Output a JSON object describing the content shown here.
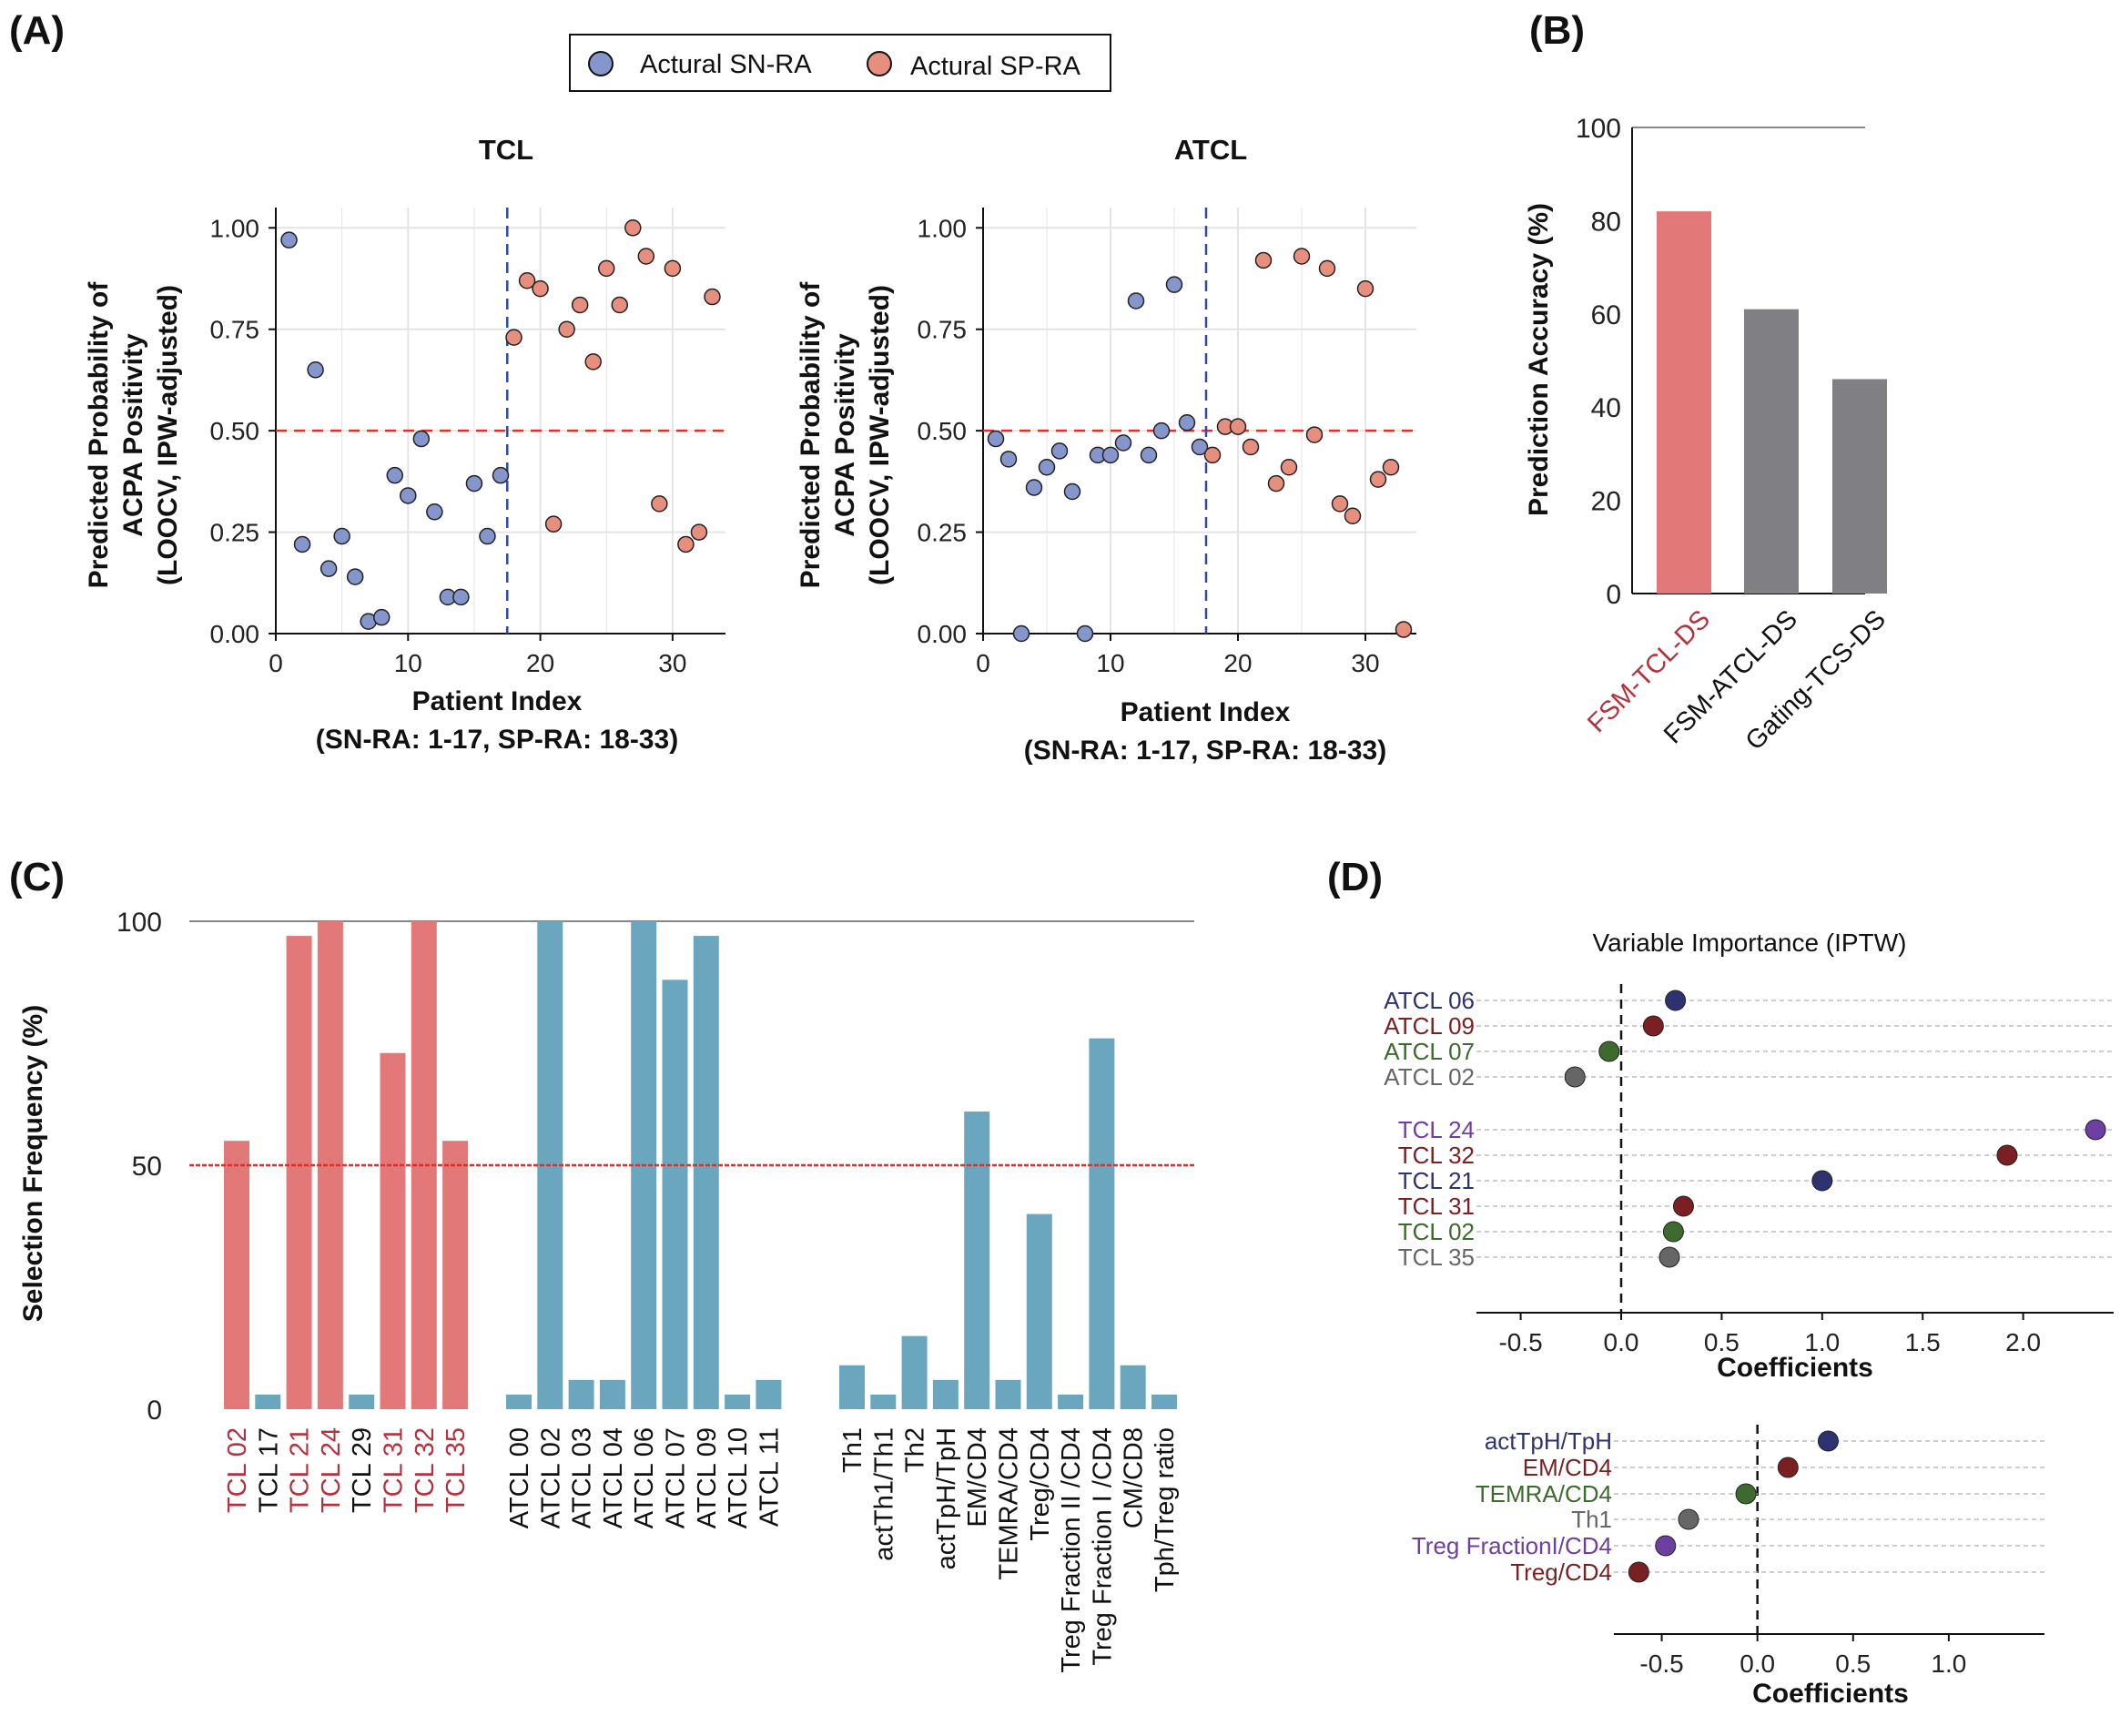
{
  "panels": {
    "A": "(A)",
    "B": "(B)",
    "C": "(C)",
    "D": "(D)"
  },
  "legend": {
    "items": [
      {
        "label": "Actural SN-RA",
        "color": "#8496cc"
      },
      {
        "label": "Actural SP-RA",
        "color": "#e68f7f"
      }
    ]
  },
  "chart_data": [
    {
      "id": "tcl",
      "type": "scatter",
      "title": "TCL",
      "ylabel_lines": [
        "Predicted Probability of",
        "ACPA Positivity",
        "(LOOCV, IPW-adjusted)"
      ],
      "xlabel_lines": [
        "Patient Index",
        "(SN-RA: 1-17, SP-RA: 18-33)"
      ],
      "xlim": [
        0,
        34
      ],
      "ylim": [
        0,
        1.05
      ],
      "xticks": [
        0,
        10,
        20,
        30
      ],
      "yticks": [
        0.0,
        0.25,
        0.5,
        0.75,
        1.0
      ],
      "ytick_labels": [
        "0.00",
        "0.25",
        "0.50",
        "0.75",
        "1.00"
      ],
      "threshold": 0.5,
      "split": 17.5,
      "series": [
        {
          "name": "Actural SN-RA",
          "color": "#8496cc",
          "x": [
            1,
            2,
            3,
            4,
            5,
            6,
            7,
            8,
            9,
            10,
            11,
            12,
            13,
            14,
            15,
            16,
            17
          ],
          "y": [
            0.97,
            0.22,
            0.65,
            0.16,
            0.24,
            0.14,
            0.03,
            0.04,
            0.39,
            0.34,
            0.48,
            0.3,
            0.09,
            0.09,
            0.37,
            0.24,
            0.39
          ]
        },
        {
          "name": "Actural SP-RA",
          "color": "#e68f7f",
          "x": [
            18,
            19,
            20,
            21,
            22,
            23,
            24,
            25,
            26,
            27,
            28,
            30,
            29,
            31,
            32,
            33
          ],
          "y": [
            0.73,
            0.87,
            0.85,
            0.27,
            0.75,
            0.81,
            0.67,
            0.9,
            0.81,
            1.0,
            0.93,
            0.9,
            0.32,
            0.22,
            0.25,
            0.83
          ]
        }
      ]
    },
    {
      "id": "atcl",
      "type": "scatter",
      "title": "ATCL",
      "ylabel_lines": [
        "Predicted Probability of",
        "ACPA Positivity",
        "(LOOCV, IPW-adjusted)"
      ],
      "xlabel_lines": [
        "Patient Index",
        "(SN-RA: 1-17, SP-RA: 18-33)"
      ],
      "xlim": [
        0,
        34
      ],
      "ylim": [
        0,
        1.05
      ],
      "xticks": [
        0,
        10,
        20,
        30
      ],
      "yticks": [
        0.0,
        0.25,
        0.5,
        0.75,
        1.0
      ],
      "ytick_labels": [
        "0.00",
        "0.25",
        "0.50",
        "0.75",
        "1.00"
      ],
      "threshold": 0.5,
      "split": 17.5,
      "series": [
        {
          "name": "Actural SN-RA",
          "color": "#8496cc",
          "x": [
            1,
            2,
            3,
            4,
            5,
            6,
            7,
            8,
            9,
            10,
            11,
            12,
            13,
            14,
            15,
            16,
            17
          ],
          "y": [
            0.48,
            0.43,
            0.0,
            0.36,
            0.41,
            0.45,
            0.35,
            0.0,
            0.44,
            0.44,
            0.47,
            0.82,
            0.44,
            0.5,
            0.86,
            0.52,
            0.46
          ]
        },
        {
          "name": "Actural SP-RA",
          "color": "#e68f7f",
          "x": [
            18,
            19,
            20,
            21,
            22,
            23,
            24,
            25,
            26,
            27,
            28,
            29,
            30,
            31,
            32,
            33
          ],
          "y": [
            0.44,
            0.51,
            0.51,
            0.46,
            0.92,
            0.37,
            0.41,
            0.93,
            0.49,
            0.9,
            0.32,
            0.29,
            0.85,
            0.38,
            0.41,
            0.01
          ]
        }
      ]
    },
    {
      "id": "accuracy",
      "type": "bar",
      "ylabel": "Prediction Accuracy (%)",
      "ylim": [
        0,
        100
      ],
      "yticks": [
        0,
        20,
        40,
        60,
        80,
        100
      ],
      "categories": [
        "FSM-TCL-DS",
        "FSM-ATCL-DS",
        "Gating-TCS-DS"
      ],
      "values": [
        82,
        61,
        46
      ],
      "colors": [
        "#e37878",
        "#7f7f84",
        "#7f7f84"
      ],
      "label_colors": [
        "#b3333d",
        "#111111",
        "#111111"
      ]
    },
    {
      "id": "selection",
      "type": "bar",
      "ylabel": "Selection Frequency (%)",
      "ylim": [
        0,
        100
      ],
      "yticks": [
        0,
        50,
        100
      ],
      "threshold": 50,
      "groups": [
        {
          "categories": [
            "TCL 02",
            "TCL 17",
            "TCL 21",
            "TCL 24",
            "TCL 29",
            "TCL 31",
            "TCL 32",
            "TCL 35"
          ],
          "values": [
            55,
            3,
            97,
            100,
            3,
            73,
            100,
            55
          ],
          "colors": [
            "#e37878",
            "#6aa7bf",
            "#e37878",
            "#e37878",
            "#6aa7bf",
            "#e37878",
            "#e37878",
            "#e37878"
          ],
          "label_colors": [
            "#b3333d",
            "#111111",
            "#b3333d",
            "#b3333d",
            "#111111",
            "#b3333d",
            "#b3333d",
            "#b3333d"
          ]
        },
        {
          "categories": [
            "ATCL 00",
            "ATCL 02",
            "ATCL 03",
            "ATCL 04",
            "ATCL 06",
            "ATCL 07",
            "ATCL 09",
            "ATCL 10",
            "ATCL 11"
          ],
          "values": [
            3,
            100,
            6,
            6,
            100,
            88,
            97,
            3,
            6
          ],
          "colors": [
            "#6aa7bf",
            "#6aa7bf",
            "#6aa7bf",
            "#6aa7bf",
            "#6aa7bf",
            "#6aa7bf",
            "#6aa7bf",
            "#6aa7bf",
            "#6aa7bf"
          ],
          "label_colors": [
            "#111111",
            "#111111",
            "#111111",
            "#111111",
            "#111111",
            "#111111",
            "#111111",
            "#111111",
            "#111111"
          ]
        },
        {
          "categories": [
            "Th1",
            "actTh1/Th1",
            "Th2",
            "actTpH/TpH",
            "EM/CD4",
            "TEMRA/CD4",
            "Treg/CD4",
            "Treg Fraction II /CD4",
            "Treg Fraction I /CD4",
            "CM/CD8",
            "Tph/Treg ratio"
          ],
          "values": [
            9,
            3,
            15,
            6,
            61,
            6,
            40,
            3,
            76,
            9,
            3
          ],
          "colors": [
            "#6aa7bf",
            "#6aa7bf",
            "#6aa7bf",
            "#6aa7bf",
            "#6aa7bf",
            "#6aa7bf",
            "#6aa7bf",
            "#6aa7bf",
            "#6aa7bf",
            "#6aa7bf",
            "#6aa7bf"
          ],
          "label_colors": [
            "#111111",
            "#111111",
            "#111111",
            "#111111",
            "#111111",
            "#111111",
            "#111111",
            "#111111",
            "#111111",
            "#111111",
            "#111111"
          ]
        }
      ]
    },
    {
      "id": "importance_top",
      "type": "scatter",
      "title": "Variable Importance (IPTW)",
      "xlabel": "Coefficients",
      "xlim": [
        -0.72,
        2.45
      ],
      "xticks": [
        -0.5,
        0.0,
        0.5,
        1.0,
        1.5,
        2.0
      ],
      "xtick_labels": [
        "-0.5",
        "0.0",
        "0.5",
        "1.0",
        "1.5",
        "2.0"
      ],
      "groups": [
        {
          "labels": [
            "ATCL 06",
            "ATCL 09",
            "ATCL 07",
            "ATCL 02"
          ],
          "values": [
            0.27,
            0.16,
            -0.06,
            -0.23
          ],
          "colors": [
            "#2e3270",
            "#7a1f22",
            "#3c6a2f",
            "#666666"
          ]
        },
        {
          "labels": [
            "TCL 24",
            "TCL 32",
            "TCL 21",
            "TCL 31",
            "TCL 02",
            "TCL 35"
          ],
          "values": [
            2.36,
            1.92,
            1.0,
            0.31,
            0.26,
            0.24
          ],
          "colors": [
            "#6d3fa3",
            "#7a1f22",
            "#2e3270",
            "#7a1f22",
            "#3c6a2f",
            "#666666"
          ]
        }
      ]
    },
    {
      "id": "importance_bottom",
      "type": "scatter",
      "xlabel": "Coefficients",
      "xlim": [
        -0.75,
        1.5
      ],
      "xticks": [
        -0.5,
        0.0,
        0.5,
        1.0
      ],
      "xtick_labels": [
        "-0.5",
        "0.0",
        "0.5",
        "1.0"
      ],
      "groups": [
        {
          "labels": [
            "actTpH/TpH",
            "EM/CD4",
            "TEMRA/CD4",
            "Th1",
            "Treg FractionI/CD4",
            "Treg/CD4"
          ],
          "values": [
            0.37,
            0.16,
            -0.06,
            -0.36,
            -0.48,
            -0.62
          ],
          "colors": [
            "#2e3270",
            "#7a1f22",
            "#3c6a2f",
            "#666666",
            "#6d3fa3",
            "#7a1f22"
          ]
        }
      ]
    }
  ]
}
